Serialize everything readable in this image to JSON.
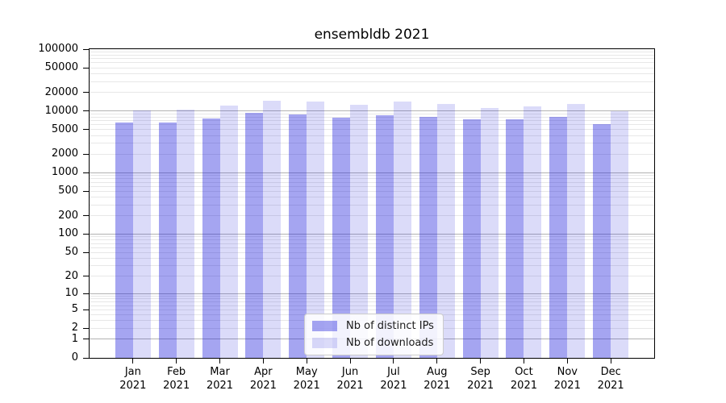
{
  "chart_data": {
    "type": "bar",
    "title": "ensembldb 2021",
    "yscale": "log1p",
    "ylim": [
      0,
      100000
    ],
    "yticks": [
      0,
      1,
      2,
      5,
      10,
      20,
      50,
      100,
      200,
      500,
      1000,
      2000,
      5000,
      10000,
      20000,
      50000,
      100000
    ],
    "grid": "horizontal, major decades darker + log minors lighter",
    "categories": [
      "Jan",
      "Feb",
      "Mar",
      "Apr",
      "May",
      "Jun",
      "Jul",
      "Aug",
      "Sep",
      "Oct",
      "Nov",
      "Dec"
    ],
    "x_year_label": "2021",
    "series": [
      {
        "name": "Nb of distinct IPs",
        "color": "rgba(30, 30, 220, 0.40)",
        "values": [
          6400,
          6400,
          7600,
          9200,
          8800,
          7800,
          8400,
          7900,
          7300,
          7300,
          8000,
          6200
        ]
      },
      {
        "name": "Nb of downloads",
        "color": "rgba(30, 30, 220, 0.16)",
        "values": [
          10100,
          10600,
          12100,
          14800,
          14000,
          12500,
          14200,
          12800,
          11000,
          12000,
          13100,
          9800
        ]
      }
    ],
    "legend_position": "lower center"
  }
}
